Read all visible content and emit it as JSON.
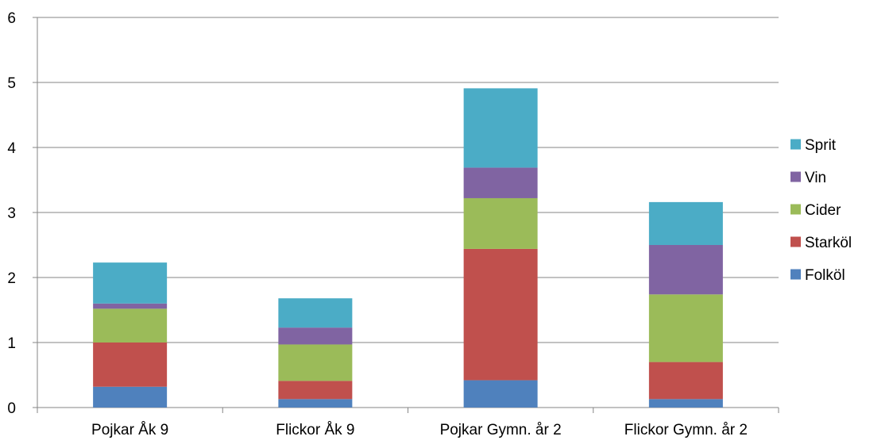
{
  "chart_data": {
    "type": "bar",
    "stacked": true,
    "title": "",
    "xlabel": "",
    "ylabel": "",
    "ylim": [
      0,
      6
    ],
    "yticks": [
      0,
      1,
      2,
      3,
      4,
      5,
      6
    ],
    "grid": true,
    "legend_position": "right",
    "categories": [
      "Pojkar Åk 9",
      "Flickor Åk 9",
      "Pojkar Gymn. år 2",
      "Flickor Gymn. år 2"
    ],
    "series": [
      {
        "name": "Folköl",
        "color": "#4F81BD",
        "values": [
          0.32,
          0.13,
          0.42,
          0.13
        ]
      },
      {
        "name": "Starköl",
        "color": "#C0504D",
        "values": [
          0.68,
          0.28,
          2.02,
          0.57
        ]
      },
      {
        "name": "Cider",
        "color": "#9BBB59",
        "values": [
          0.52,
          0.56,
          0.78,
          1.04
        ]
      },
      {
        "name": "Vin",
        "color": "#8064A2",
        "values": [
          0.08,
          0.26,
          0.47,
          0.76
        ]
      },
      {
        "name": "Sprit",
        "color": "#4BACC6",
        "values": [
          0.63,
          0.45,
          1.22,
          0.66
        ]
      }
    ]
  }
}
